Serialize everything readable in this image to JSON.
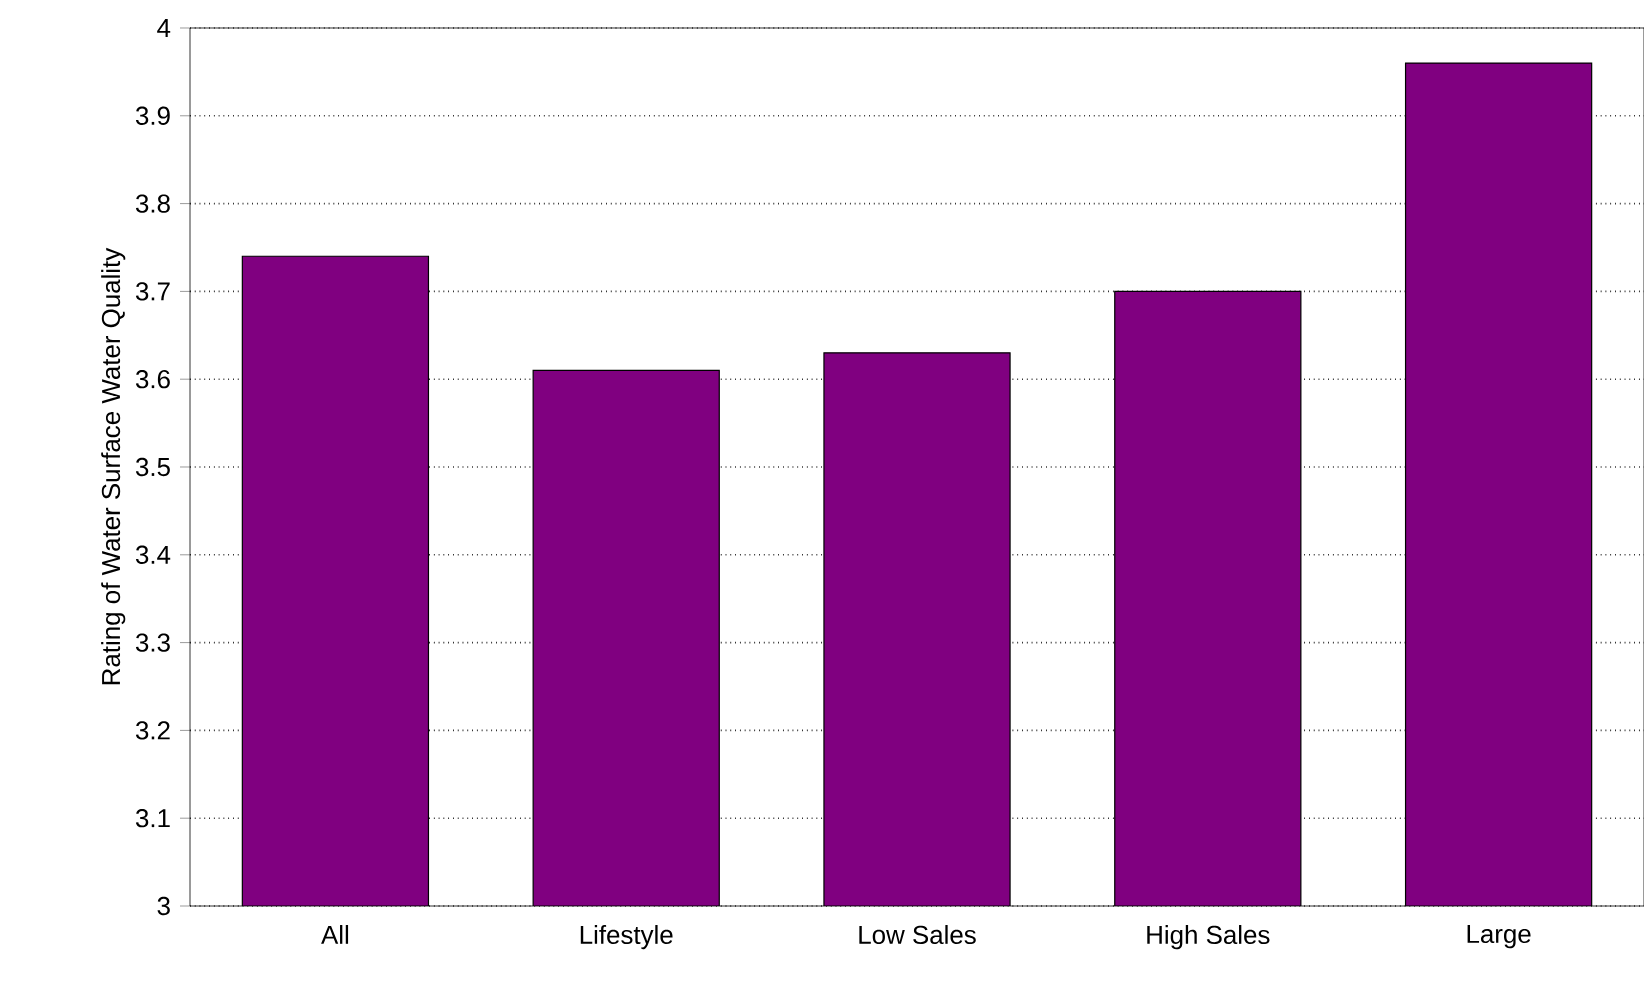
{
  "chart_data": {
    "type": "bar",
    "ylabel": "Rating of Water Surface Water Quality",
    "categories": [
      "All",
      "Lifestyle",
      "Low Sales",
      "High Sales",
      "Large"
    ],
    "values": [
      3.74,
      3.61,
      3.63,
      3.7,
      3.96
    ],
    "color": "#800080",
    "ylim": [
      3,
      4
    ],
    "yticks": [
      3,
      3.1,
      3.2,
      3.3,
      3.4,
      3.5,
      3.6,
      3.7,
      3.8,
      3.9,
      4
    ],
    "grid": "y"
  }
}
